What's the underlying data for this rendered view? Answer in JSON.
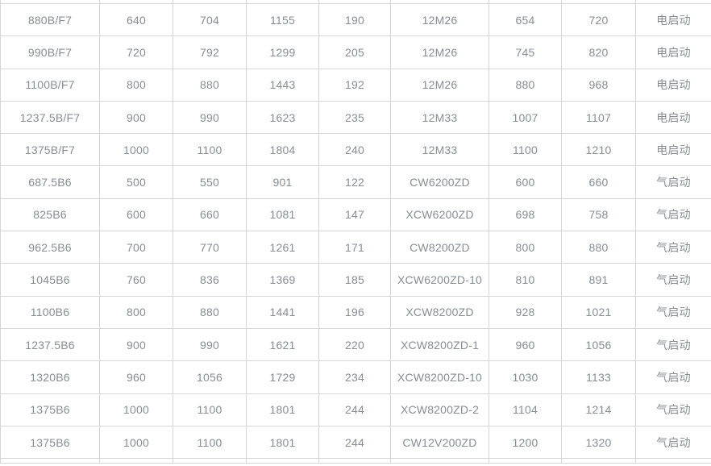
{
  "colors": {
    "background": "#ffffff",
    "border": "#d6d6d6",
    "text": "#878d93"
  },
  "table": {
    "rows": [
      [
        "880B/F7",
        "640",
        "704",
        "1155",
        "190",
        "12M26",
        "654",
        "720",
        "电启动"
      ],
      [
        "990B/F7",
        "720",
        "792",
        "1299",
        "205",
        "12M26",
        "745",
        "820",
        "电启动"
      ],
      [
        "1100B/F7",
        "800",
        "880",
        "1443",
        "192",
        "12M26",
        "880",
        "968",
        "电启动"
      ],
      [
        "1237.5B/F7",
        "900",
        "990",
        "1623",
        "235",
        "12M33",
        "1007",
        "1107",
        "电启动"
      ],
      [
        "1375B/F7",
        "1000",
        "1100",
        "1804",
        "240",
        "12M33",
        "1100",
        "1210",
        "电启动"
      ],
      [
        "687.5B6",
        "500",
        "550",
        "901",
        "122",
        "CW6200ZD",
        "600",
        "660",
        "气启动"
      ],
      [
        "825B6",
        "600",
        "660",
        "1081",
        "147",
        "XCW6200ZD",
        "698",
        "758",
        "气启动"
      ],
      [
        "962.5B6",
        "700",
        "770",
        "1261",
        "171",
        "CW8200ZD",
        "800",
        "880",
        "气启动"
      ],
      [
        "1045B6",
        "760",
        "836",
        "1369",
        "185",
        "XCW6200ZD-10",
        "810",
        "891",
        "气启动"
      ],
      [
        "1100B6",
        "800",
        "880",
        "1441",
        "196",
        "XCW8200ZD",
        "928",
        "1021",
        "气启动"
      ],
      [
        "1237.5B6",
        "900",
        "990",
        "1621",
        "220",
        "XCW8200ZD-1",
        "960",
        "1056",
        "气启动"
      ],
      [
        "1320B6",
        "960",
        "1056",
        "1729",
        "234",
        "XCW8200ZD-10",
        "1030",
        "1133",
        "气启动"
      ],
      [
        "1375B6",
        "1000",
        "1100",
        "1801",
        "244",
        "XCW8200ZD-2",
        "1104",
        "1214",
        "气启动"
      ],
      [
        "1375B6",
        "1000",
        "1100",
        "1801",
        "244",
        "CW12V200ZD",
        "1200",
        "1320",
        "气启动"
      ]
    ]
  }
}
